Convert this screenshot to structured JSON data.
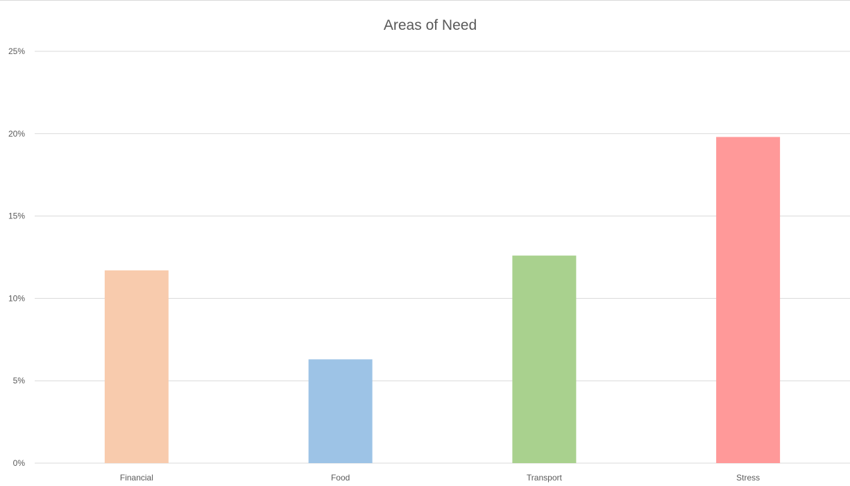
{
  "chart_data": {
    "type": "bar",
    "title": "Areas of Need",
    "xlabel": "",
    "ylabel": "",
    "categories": [
      "Financial",
      "Food",
      "Transport",
      "Stress"
    ],
    "values": [
      11.7,
      6.3,
      12.6,
      19.8
    ],
    "colors": [
      "#F8CBAD",
      "#9DC3E6",
      "#A9D18E",
      "#FF9999"
    ],
    "ylim": [
      0,
      25
    ],
    "yticks": [
      0,
      5,
      10,
      15,
      20,
      25
    ],
    "ytick_labels": [
      "0%",
      "5%",
      "10%",
      "15%",
      "20%",
      "25%"
    ],
    "grid": true,
    "gridline_color": "#d9d9d9",
    "legend": "none"
  }
}
